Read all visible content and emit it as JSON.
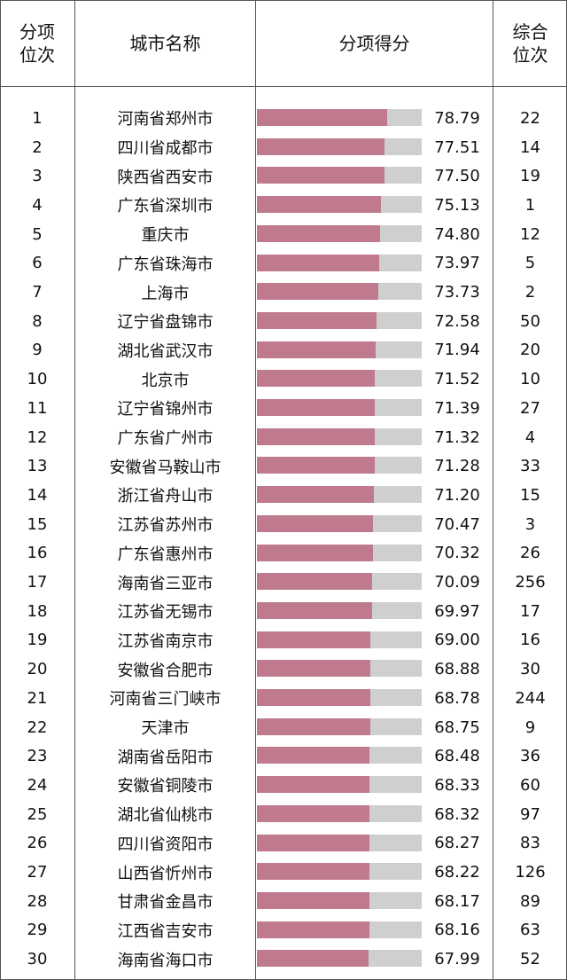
{
  "header": {
    "rank_line1": "分项",
    "rank_line2": "位次",
    "city": "城市名称",
    "score": "分项得分",
    "total_line1": "综合",
    "total_line2": "位次"
  },
  "colors": {
    "bar_fill": "#c07a8e",
    "bar_track": "#cfcfcf"
  },
  "chart_data": {
    "type": "bar",
    "bar_max": 100,
    "rows": [
      {
        "rank": "1",
        "city": "河南省郑州市",
        "score": "78.79",
        "total_rank": "22"
      },
      {
        "rank": "2",
        "city": "四川省成都市",
        "score": "77.51",
        "total_rank": "14"
      },
      {
        "rank": "3",
        "city": "陕西省西安市",
        "score": "77.50",
        "total_rank": "19"
      },
      {
        "rank": "4",
        "city": "广东省深圳市",
        "score": "75.13",
        "total_rank": "1"
      },
      {
        "rank": "5",
        "city": "重庆市",
        "score": "74.80",
        "total_rank": "12"
      },
      {
        "rank": "6",
        "city": "广东省珠海市",
        "score": "73.97",
        "total_rank": "5"
      },
      {
        "rank": "7",
        "city": "上海市",
        "score": "73.73",
        "total_rank": "2"
      },
      {
        "rank": "8",
        "city": "辽宁省盘锦市",
        "score": "72.58",
        "total_rank": "50"
      },
      {
        "rank": "9",
        "city": "湖北省武汉市",
        "score": "71.94",
        "total_rank": "20"
      },
      {
        "rank": "10",
        "city": "北京市",
        "score": "71.52",
        "total_rank": "10"
      },
      {
        "rank": "11",
        "city": "辽宁省锦州市",
        "score": "71.39",
        "total_rank": "27"
      },
      {
        "rank": "12",
        "city": "广东省广州市",
        "score": "71.32",
        "total_rank": "4"
      },
      {
        "rank": "13",
        "city": "安徽省马鞍山市",
        "score": "71.28",
        "total_rank": "33"
      },
      {
        "rank": "14",
        "city": "浙江省舟山市",
        "score": "71.20",
        "total_rank": "15"
      },
      {
        "rank": "15",
        "city": "江苏省苏州市",
        "score": "70.47",
        "total_rank": "3"
      },
      {
        "rank": "16",
        "city": "广东省惠州市",
        "score": "70.32",
        "total_rank": "26"
      },
      {
        "rank": "17",
        "city": "海南省三亚市",
        "score": "70.09",
        "total_rank": "256"
      },
      {
        "rank": "18",
        "city": "江苏省无锡市",
        "score": "69.97",
        "total_rank": "17"
      },
      {
        "rank": "19",
        "city": "江苏省南京市",
        "score": "69.00",
        "total_rank": "16"
      },
      {
        "rank": "20",
        "city": "安徽省合肥市",
        "score": "68.88",
        "total_rank": "30"
      },
      {
        "rank": "21",
        "city": "河南省三门峡市",
        "score": "68.78",
        "total_rank": "244"
      },
      {
        "rank": "22",
        "city": "天津市",
        "score": "68.75",
        "total_rank": "9"
      },
      {
        "rank": "23",
        "city": "湖南省岳阳市",
        "score": "68.48",
        "total_rank": "36"
      },
      {
        "rank": "24",
        "city": "安徽省铜陵市",
        "score": "68.33",
        "total_rank": "60"
      },
      {
        "rank": "25",
        "city": "湖北省仙桃市",
        "score": "68.32",
        "total_rank": "97"
      },
      {
        "rank": "26",
        "city": "四川省资阳市",
        "score": "68.27",
        "total_rank": "83"
      },
      {
        "rank": "27",
        "city": "山西省忻州市",
        "score": "68.22",
        "total_rank": "126"
      },
      {
        "rank": "28",
        "city": "甘肃省金昌市",
        "score": "68.17",
        "total_rank": "89"
      },
      {
        "rank": "29",
        "city": "江西省吉安市",
        "score": "68.16",
        "total_rank": "63"
      },
      {
        "rank": "30",
        "city": "海南省海口市",
        "score": "67.99",
        "total_rank": "52"
      }
    ]
  }
}
